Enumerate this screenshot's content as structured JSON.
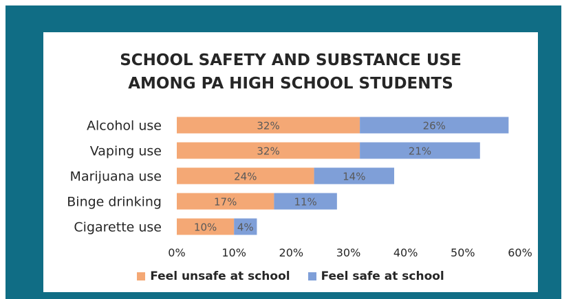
{
  "chart_data": {
    "type": "bar",
    "orientation": "horizontal",
    "stacked": true,
    "title": [
      "SCHOOL SAFETY AND SUBSTANCE USE",
      "AMONG PA HIGH SCHOOL STUDENTS"
    ],
    "categories": [
      "Alcohol use",
      "Vaping use",
      "Marijuana use",
      "Binge drinking",
      "Cigarette use"
    ],
    "series": [
      {
        "name": "Feel unsafe at school",
        "values": [
          32,
          32,
          24,
          17,
          10
        ],
        "labels": [
          "32%",
          "32%",
          "24%",
          "17%",
          "10%"
        ],
        "color": "#f4a875"
      },
      {
        "name": "Feel safe at school",
        "values": [
          26,
          21,
          14,
          11,
          4
        ],
        "labels": [
          "26%",
          "21%",
          "14%",
          "11%",
          "4%"
        ],
        "color": "#7f9fd8"
      }
    ],
    "xlim": [
      0,
      60
    ],
    "x_ticks": [
      "0%",
      "10%",
      "20%",
      "30%",
      "40%",
      "50%",
      "60%"
    ],
    "grid": false,
    "legend_position": "bottom"
  },
  "colors": {
    "frame": "#106d85",
    "background": "#ffffff",
    "text": "#262626",
    "bar_label": "#595959"
  }
}
